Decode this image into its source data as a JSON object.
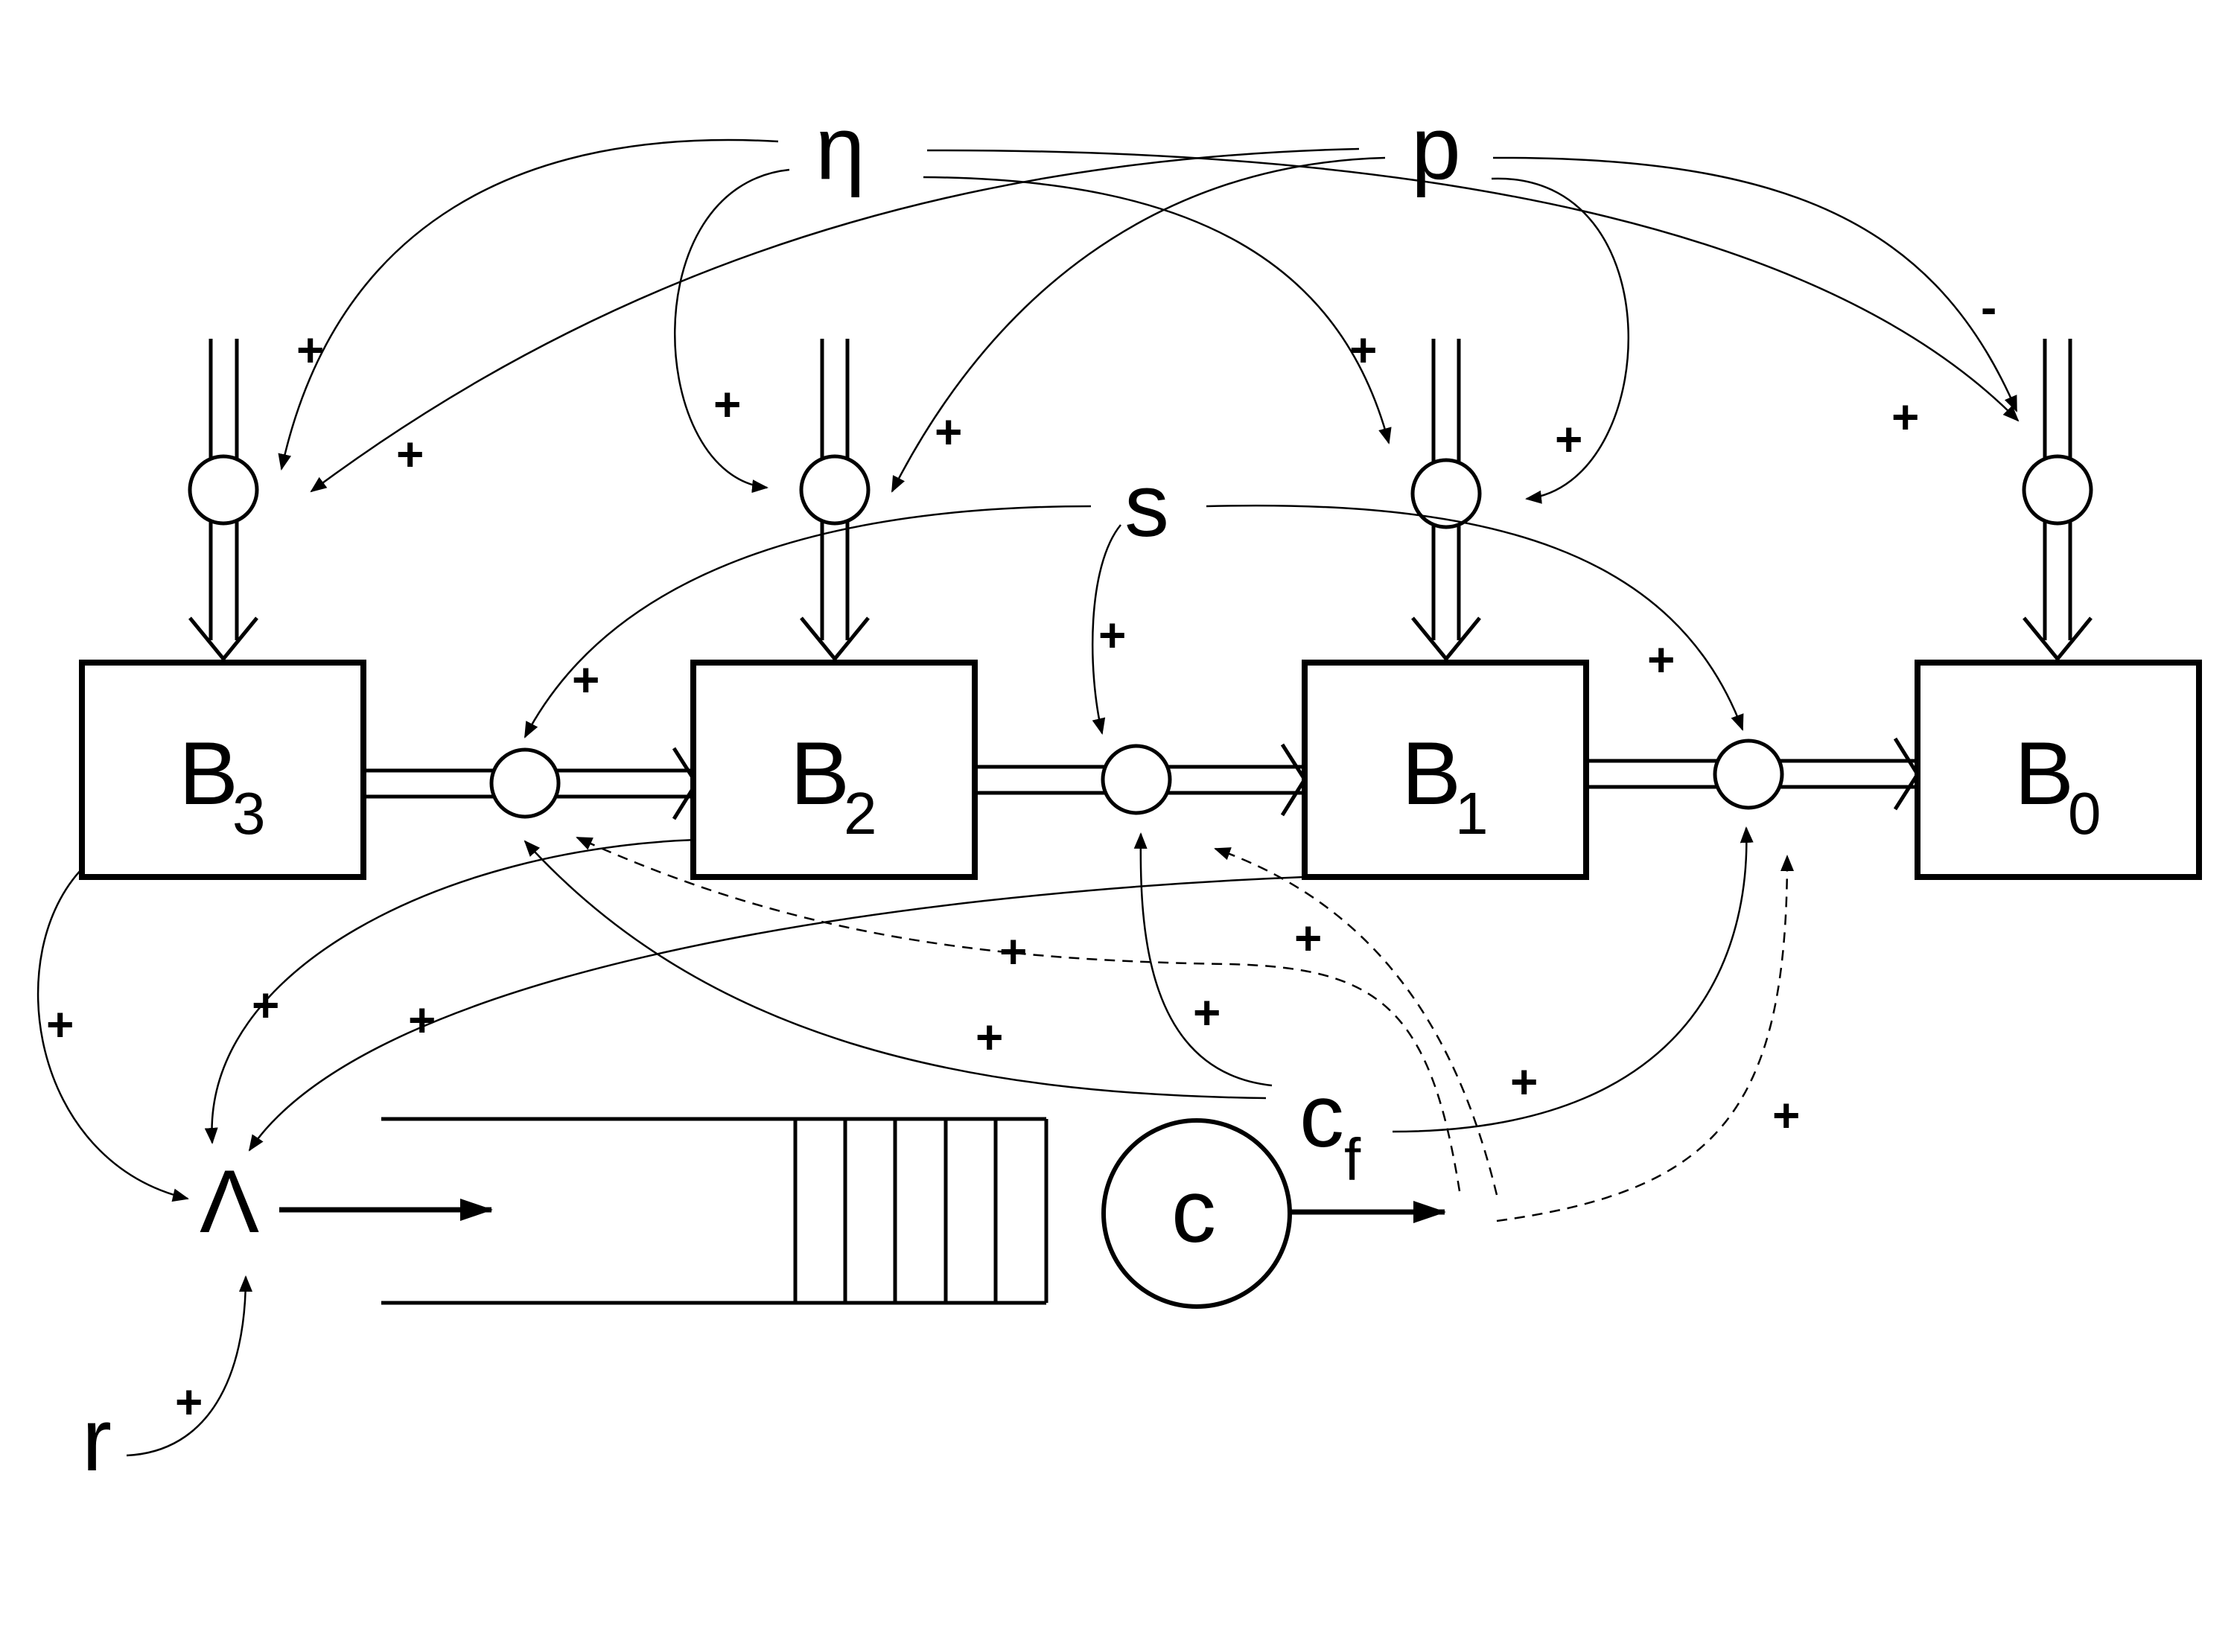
{
  "variables": {
    "eta": "η",
    "p": "p",
    "s": "s",
    "lambda": "Λ",
    "r": "r",
    "c": "c",
    "cf_main": "c",
    "cf_sub": "f"
  },
  "boxes": [
    {
      "main": "B",
      "sub": "3"
    },
    {
      "main": "B",
      "sub": "2"
    },
    {
      "main": "B",
      "sub": "1"
    },
    {
      "main": "B",
      "sub": "0"
    }
  ],
  "signs": {
    "plus": "+",
    "minus": "-"
  },
  "colors": {
    "ink": "#000000",
    "background": "#ffffff"
  }
}
